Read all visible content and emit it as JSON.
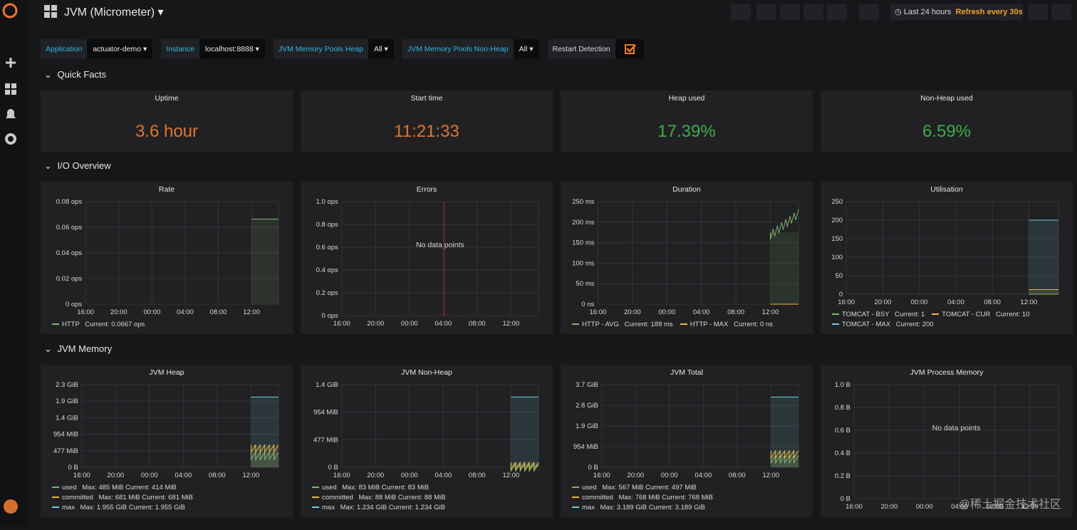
{
  "header": {
    "title": "JVM (Micrometer)",
    "time_range": "Last 24 hours",
    "refresh": "Refresh every 30s"
  },
  "variables": [
    {
      "label": "Application",
      "value": "actuator-demo"
    },
    {
      "label": "Instance",
      "value": "localhost:8888"
    },
    {
      "label": "JVM Memory Pools Heap",
      "value": "All"
    },
    {
      "label": "JVM Memory Pools Non-Heap",
      "value": "All"
    },
    {
      "label": "Restart Detection",
      "checked": true
    }
  ],
  "rows": [
    {
      "title": "Quick Facts",
      "panels": [
        {
          "type": "stat",
          "title": "Uptime",
          "value": "3.6 hour",
          "color": "#e0752d"
        },
        {
          "type": "stat",
          "title": "Start time",
          "value": "11:21:33",
          "color": "#e0752d"
        },
        {
          "type": "stat",
          "title": "Heap used",
          "value": "17.39%",
          "color": "#3dae49"
        },
        {
          "type": "stat",
          "title": "Non-Heap used",
          "value": "6.59%",
          "color": "#3dae49"
        }
      ]
    },
    {
      "title": "I/O Overview",
      "panels": [
        {
          "type": "graph",
          "title": "Rate",
          "yticks": [
            "0.08 ops",
            "0.06 ops",
            "0.04 ops",
            "0.02 ops",
            "0 ops"
          ],
          "xticks": [
            "16:00",
            "20:00",
            "00:00",
            "04:00",
            "08:00",
            "12:00"
          ],
          "legend": [
            {
              "name": "HTTP",
              "stats": "Current: 0.0667 ops",
              "color": "#7eb26d"
            }
          ]
        },
        {
          "type": "graph",
          "title": "Errors",
          "yticks": [
            "1.0 ops",
            "0.8 ops",
            "0.6 ops",
            "0.4 ops",
            "0.2 ops",
            "0 ops"
          ],
          "xticks": [
            "16:00",
            "20:00",
            "00:00",
            "04:00",
            "08:00",
            "12:00"
          ],
          "message": "No data points",
          "legend": []
        },
        {
          "type": "graph",
          "title": "Duration",
          "yticks": [
            "250 ms",
            "200 ms",
            "150 ms",
            "100 ms",
            "50 ms",
            "0 ns"
          ],
          "xticks": [
            "16:00",
            "20:00",
            "00:00",
            "04:00",
            "08:00",
            "12:00"
          ],
          "legend": [
            {
              "name": "HTTP - AVG",
              "stats": "Current: 188 ms",
              "color": "#7eb26d"
            },
            {
              "name": "HTTP - MAX",
              "stats": "Current: 0 ns",
              "color": "#eab839"
            }
          ]
        },
        {
          "type": "graph",
          "title": "Utilisation",
          "yticks": [
            "250",
            "200",
            "150",
            "100",
            "50",
            "0"
          ],
          "xticks": [
            "16:00",
            "20:00",
            "00:00",
            "04:00",
            "08:00",
            "12:00"
          ],
          "legend": [
            {
              "name": "TOMCAT - BSY",
              "stats": "Current: 1",
              "color": "#7eb26d"
            },
            {
              "name": "TOMCAT - CUR",
              "stats": "Current: 10",
              "color": "#eab839"
            },
            {
              "name": "TOMCAT - MAX",
              "stats": "Current: 200",
              "color": "#6ed0e0"
            }
          ]
        }
      ]
    },
    {
      "title": "JVM Memory",
      "panels": [
        {
          "type": "graph",
          "title": "JVM Heap",
          "yticks": [
            "2.3 GiB",
            "1.9 GiB",
            "1.4 GiB",
            "954 MiB",
            "477 MiB",
            "0 B"
          ],
          "xticks": [
            "16:00",
            "20:00",
            "00:00",
            "04:00",
            "08:00",
            "12:00"
          ],
          "legend": [
            {
              "name": "used",
              "stats": "Max: 485 MiB  Current: 414 MiB",
              "color": "#7eb26d"
            },
            {
              "name": "committed",
              "stats": "Max: 681 MiB  Current: 681 MiB",
              "color": "#eab839"
            },
            {
              "name": "max",
              "stats": "Max: 1.955 GiB  Current: 1.955 GiB",
              "color": "#6ed0e0"
            }
          ]
        },
        {
          "type": "graph",
          "title": "JVM Non-Heap",
          "yticks": [
            "1.4 GiB",
            "954 MiB",
            "477 MiB",
            "0 B"
          ],
          "xticks": [
            "16:00",
            "20:00",
            "00:00",
            "04:00",
            "08:00",
            "12:00"
          ],
          "legend": [
            {
              "name": "used",
              "stats": "Max: 83 MiB  Current: 83 MiB",
              "color": "#7eb26d"
            },
            {
              "name": "committed",
              "stats": "Max: 88 MiB  Current: 88 MiB",
              "color": "#eab839"
            },
            {
              "name": "max",
              "stats": "Max: 1.234 GiB  Current: 1.234 GiB",
              "color": "#6ed0e0"
            }
          ]
        },
        {
          "type": "graph",
          "title": "JVM Total",
          "yticks": [
            "3.7 GiB",
            "2.8 GiB",
            "1.9 GiB",
            "954 MiB",
            "0 B"
          ],
          "xticks": [
            "16:00",
            "20:00",
            "00:00",
            "04:00",
            "08:00",
            "12:00"
          ],
          "legend": [
            {
              "name": "used",
              "stats": "Max: 567 MiB  Current: 497 MiB",
              "color": "#7eb26d"
            },
            {
              "name": "committed",
              "stats": "Max: 768 MiB  Current: 768 MiB",
              "color": "#eab839"
            },
            {
              "name": "max",
              "stats": "Max: 3.189 GiB  Current: 3.189 GiB",
              "color": "#6ed0e0"
            }
          ]
        },
        {
          "type": "graph",
          "title": "JVM Process Memory",
          "yticks": [
            "1.0 B",
            "0.8 B",
            "0.6 B",
            "0.4 B",
            "0.2 B",
            "0 B"
          ],
          "xticks": [
            "16:00",
            "20:00",
            "00:00",
            "04:00",
            "08:00",
            "12:00"
          ],
          "message": "No data points",
          "legend": []
        }
      ]
    }
  ],
  "watermark": "@稀土掘金技术社区"
}
